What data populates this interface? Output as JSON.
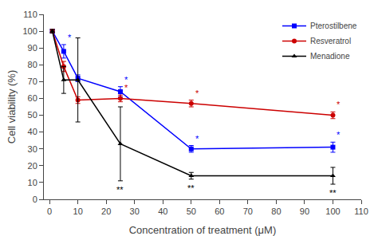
{
  "chart_data": {
    "type": "line",
    "xlabel": "Concentration of treatment (μM)",
    "ylabel": "Cell viability (%)",
    "x": [
      1,
      5,
      10,
      25,
      50,
      100
    ],
    "series": [
      {
        "name": "Pterostilbene",
        "color": "#0000FF",
        "marker": "square",
        "values": [
          100,
          88,
          72,
          64,
          30,
          31
        ],
        "errors": [
          1,
          4,
          2,
          3,
          2,
          3
        ]
      },
      {
        "name": "Resveratrol",
        "color": "#CC0000",
        "marker": "circle",
        "values": [
          100,
          79,
          59,
          60,
          57,
          50
        ],
        "errors": [
          1,
          3,
          2,
          2,
          2,
          2
        ]
      },
      {
        "name": "Menadione",
        "color": "#000000",
        "marker": "triangle-up",
        "values": [
          100,
          71,
          71,
          33,
          14,
          14
        ],
        "errors": [
          1,
          8,
          25,
          22,
          2,
          5
        ]
      }
    ],
    "annotations": [
      {
        "series": "Pterostilbene",
        "x": 5,
        "text": "*",
        "position": "above"
      },
      {
        "series": "Pterostilbene",
        "x": 25,
        "text": "*",
        "position": "above"
      },
      {
        "series": "Pterostilbene",
        "x": 50,
        "text": "*",
        "position": "above"
      },
      {
        "series": "Pterostilbene",
        "x": 100,
        "text": "*",
        "position": "above"
      },
      {
        "series": "Resveratrol",
        "x": 25,
        "text": "*",
        "position": "above"
      },
      {
        "series": "Resveratrol",
        "x": 50,
        "text": "*",
        "position": "above"
      },
      {
        "series": "Resveratrol",
        "x": 100,
        "text": "*",
        "position": "above"
      },
      {
        "series": "Menadione",
        "x": 25,
        "text": "**",
        "position": "below"
      },
      {
        "series": "Menadione",
        "x": 50,
        "text": "**",
        "position": "below"
      },
      {
        "series": "Menadione",
        "x": 100,
        "text": "**",
        "position": "below"
      }
    ],
    "xlim": [
      -2,
      110
    ],
    "ylim": [
      0,
      110
    ],
    "xticks": [
      0,
      10,
      20,
      30,
      40,
      50,
      60,
      70,
      80,
      90,
      100,
      110
    ],
    "yticks": [
      0,
      10,
      20,
      30,
      40,
      50,
      60,
      70,
      80,
      90,
      100,
      110
    ],
    "grid": false,
    "legend": "upper right"
  }
}
